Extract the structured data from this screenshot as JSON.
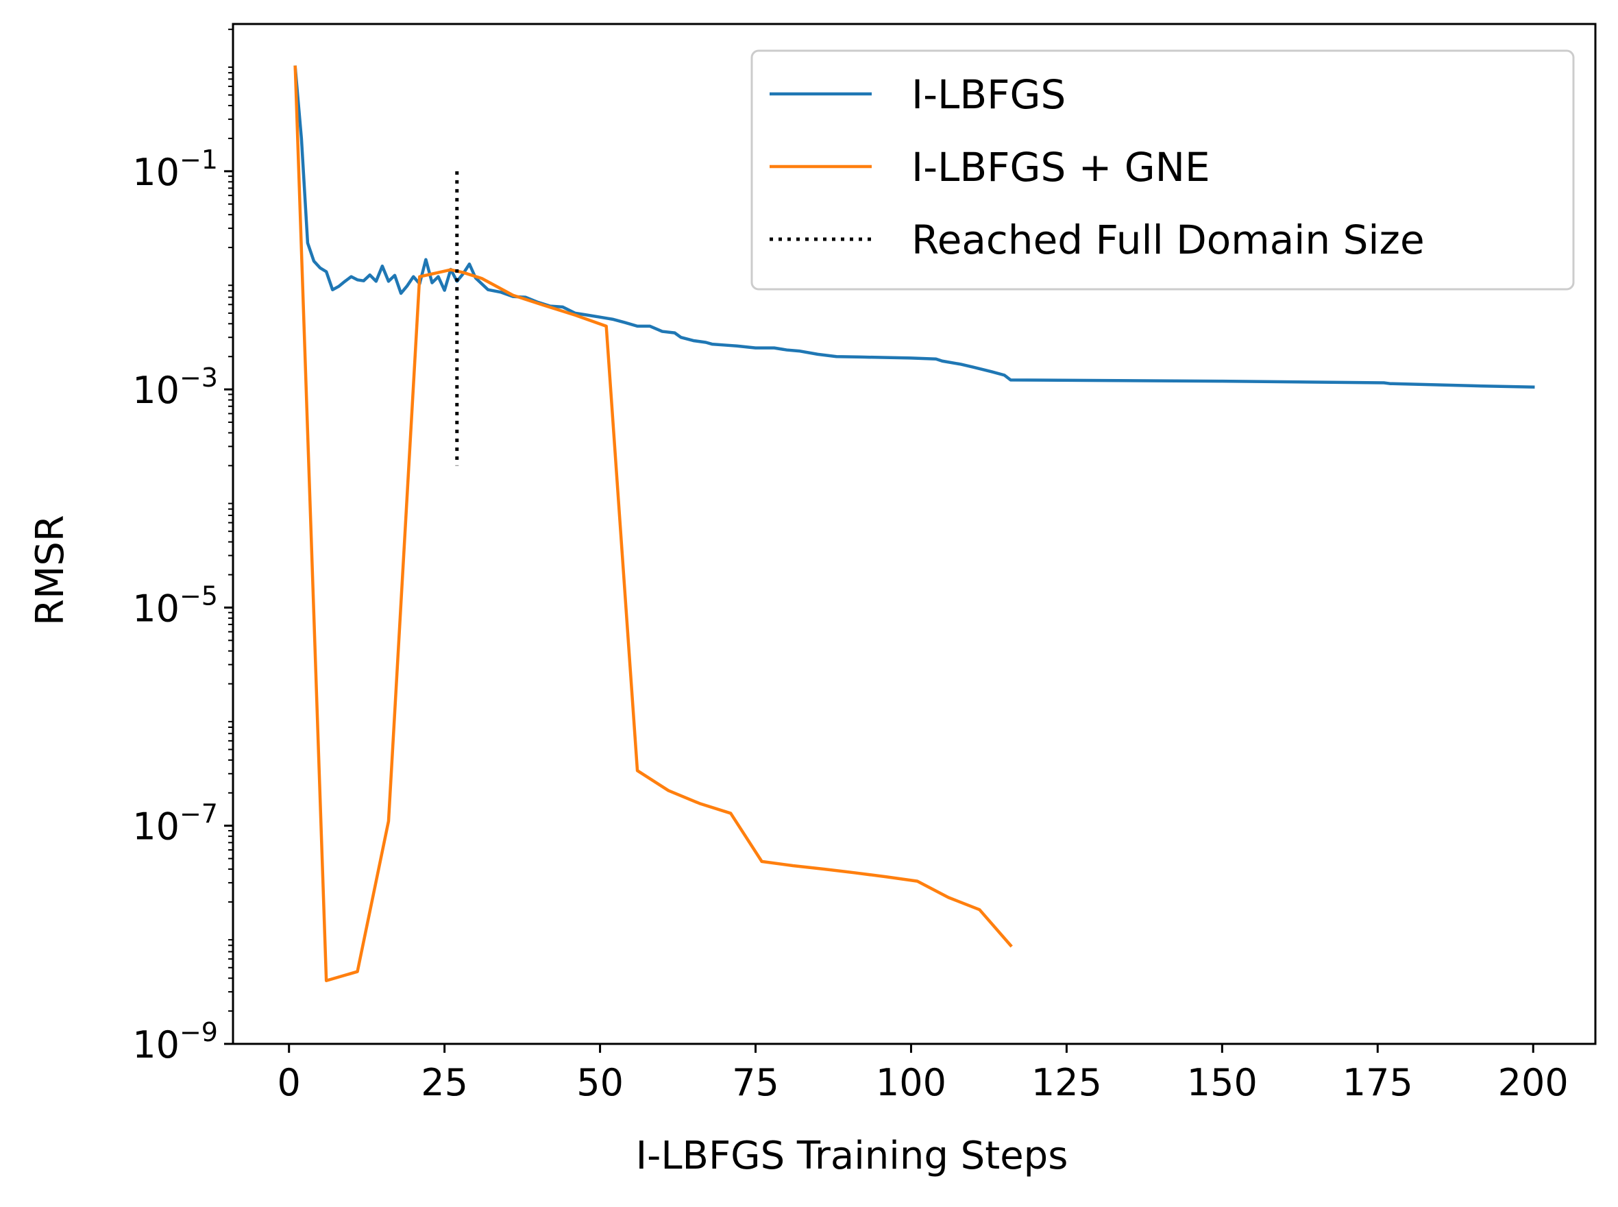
{
  "chart_data": {
    "type": "line",
    "title": "",
    "xlabel": "I-LBFGS Training Steps",
    "ylabel": "RMSR",
    "xlim": [
      -9,
      210
    ],
    "ylim_log10": [
      -9,
      0.35
    ],
    "yscale": "log",
    "grid": false,
    "legend_position": "top-right",
    "x_ticks": [
      0,
      25,
      50,
      75,
      100,
      125,
      150,
      175,
      200
    ],
    "y_ticks": [
      {
        "exp": -1,
        "base": "10",
        "sup": "−1"
      },
      {
        "exp": -3,
        "base": "10",
        "sup": "−3"
      },
      {
        "exp": -5,
        "base": "10",
        "sup": "−5"
      },
      {
        "exp": -7,
        "base": "10",
        "sup": "−7"
      },
      {
        "exp": -9,
        "base": "10",
        "sup": "−9"
      }
    ],
    "series": [
      {
        "name": "I-LBFGS",
        "color": "#1f77b4",
        "style": "solid",
        "x": [
          1,
          2,
          3,
          4,
          5,
          6,
          7,
          8,
          9,
          10,
          11,
          12,
          13,
          14,
          15,
          16,
          17,
          18,
          19,
          20,
          21,
          22,
          23,
          24,
          25,
          26,
          27,
          28,
          29,
          30,
          32,
          34,
          36,
          38,
          40,
          42,
          44,
          46,
          48,
          50,
          52,
          54,
          56,
          58,
          60,
          62,
          63,
          65,
          67,
          68,
          70,
          72,
          75,
          78,
          80,
          82,
          85,
          88,
          92,
          96,
          100,
          104,
          105,
          108,
          110,
          113,
          115,
          116,
          150,
          176,
          177,
          190,
          200
        ],
        "y": [
          0.9,
          0.2,
          0.022,
          0.015,
          0.013,
          0.012,
          0.0082,
          0.0088,
          0.0098,
          0.0108,
          0.0101,
          0.0099,
          0.0112,
          0.0098,
          0.0135,
          0.0098,
          0.0111,
          0.0076,
          0.0089,
          0.0108,
          0.0093,
          0.0155,
          0.0095,
          0.0108,
          0.0081,
          0.0126,
          0.0098,
          0.0115,
          0.0141,
          0.0105,
          0.0082,
          0.0078,
          0.0071,
          0.007,
          0.0063,
          0.0058,
          0.0057,
          0.005,
          0.0048,
          0.0046,
          0.0044,
          0.0041,
          0.0038,
          0.0038,
          0.0034,
          0.0033,
          0.003,
          0.0028,
          0.0027,
          0.0026,
          0.00255,
          0.0025,
          0.0024,
          0.0024,
          0.0023,
          0.00225,
          0.0021,
          0.002,
          0.00198,
          0.00196,
          0.00194,
          0.0019,
          0.00182,
          0.0017,
          0.0016,
          0.00145,
          0.00135,
          0.00122,
          0.00119,
          0.00115,
          0.00113,
          0.00108,
          0.00105
        ]
      },
      {
        "name": "I-LBFGS + GNE",
        "color": "#ff7f0e",
        "style": "solid",
        "x": [
          1,
          6,
          11,
          16,
          21,
          26,
          28,
          31,
          36,
          41,
          46,
          51,
          56,
          61,
          66,
          71,
          76,
          81,
          86,
          91,
          96,
          101,
          106,
          111,
          116
        ],
        "y": [
          0.9,
          3.8e-09,
          4.6e-09,
          1.1e-07,
          0.0108,
          0.0125,
          0.0118,
          0.0104,
          0.0073,
          0.0059,
          0.0048,
          0.0038,
          3.2e-07,
          2.1e-07,
          1.6e-07,
          1.3e-07,
          4.7e-08,
          4.3e-08,
          4e-08,
          3.7e-08,
          3.4e-08,
          3.1e-08,
          2.2e-08,
          1.7e-08,
          8e-09
        ]
      }
    ],
    "vline": {
      "name": "Reached Full Domain Size",
      "x": 27,
      "y_from": 0.0002,
      "y_to": 0.1,
      "color": "#000000",
      "style": "dotted"
    }
  }
}
